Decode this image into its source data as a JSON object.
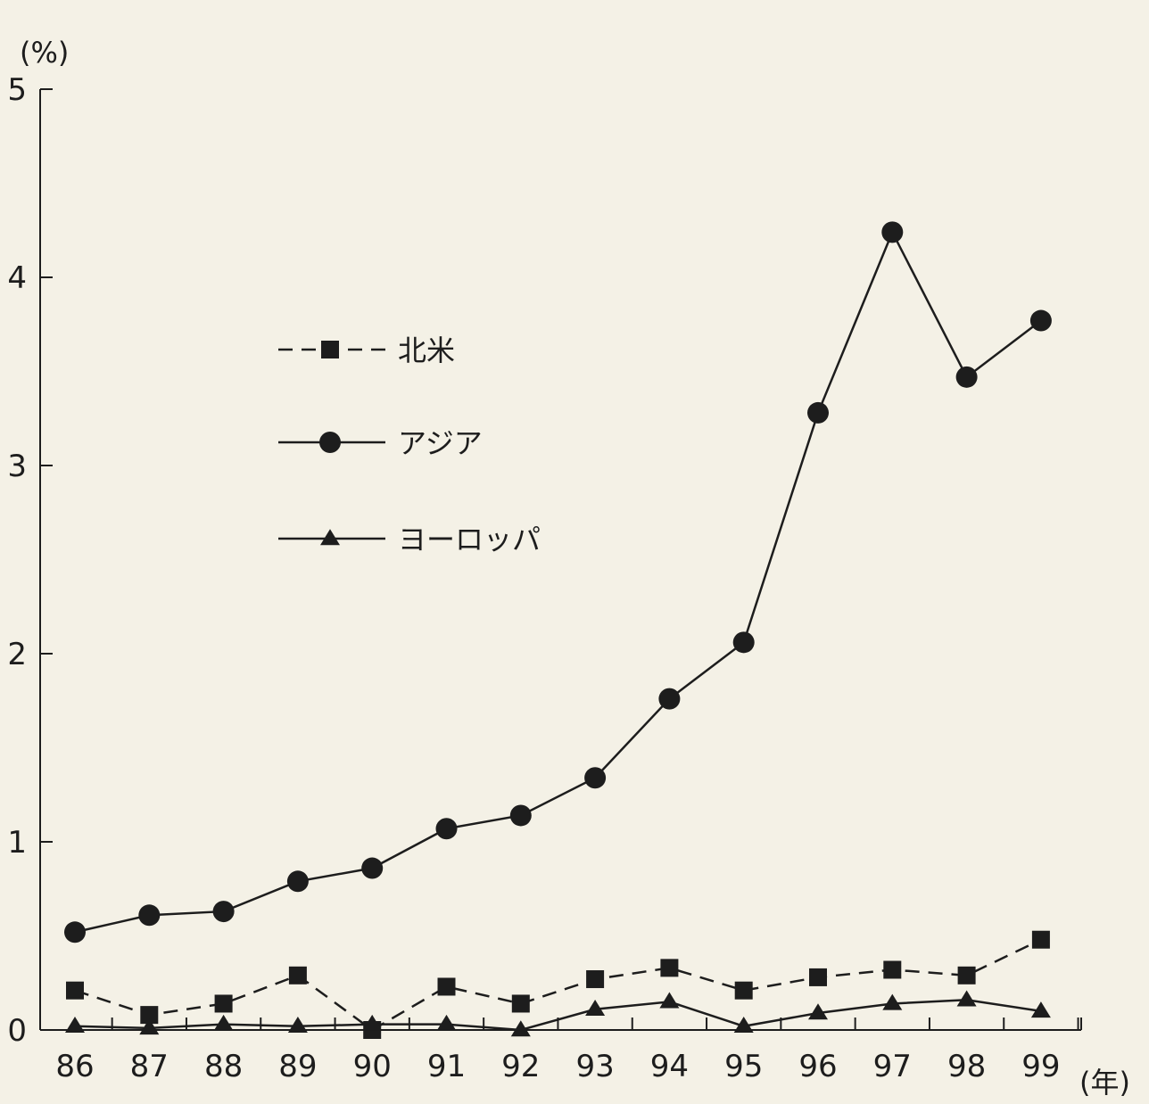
{
  "chart_data": {
    "type": "line",
    "ylabel": "(%)",
    "xlabel": "(年)",
    "categories": [
      "86",
      "87",
      "88",
      "89",
      "90",
      "91",
      "92",
      "93",
      "94",
      "95",
      "96",
      "97",
      "98",
      "99"
    ],
    "ylim": [
      0,
      5
    ],
    "yticks": [
      "0",
      "1",
      "2",
      "3",
      "4",
      "5"
    ],
    "grid": false,
    "legend_position": "upper-left",
    "series": [
      {
        "name": "北米",
        "marker": "square",
        "line": "dashed",
        "color": "#1d1d1d",
        "values": [
          0.21,
          0.08,
          0.14,
          0.29,
          0.0,
          0.23,
          0.14,
          0.27,
          0.33,
          0.21,
          0.28,
          0.32,
          0.29,
          0.48
        ]
      },
      {
        "name": "アジア",
        "marker": "circle",
        "line": "solid",
        "color": "#1d1d1d",
        "values": [
          0.52,
          0.61,
          0.63,
          0.79,
          0.86,
          1.07,
          1.14,
          1.34,
          1.76,
          2.06,
          3.28,
          4.24,
          3.47,
          3.77
        ]
      },
      {
        "name": "ヨーロッパ",
        "marker": "triangle",
        "line": "solid",
        "color": "#1d1d1d",
        "values": [
          0.02,
          0.01,
          0.03,
          0.02,
          0.03,
          0.03,
          0.0,
          0.11,
          0.15,
          0.02,
          0.09,
          0.14,
          0.16,
          0.1
        ]
      }
    ]
  }
}
